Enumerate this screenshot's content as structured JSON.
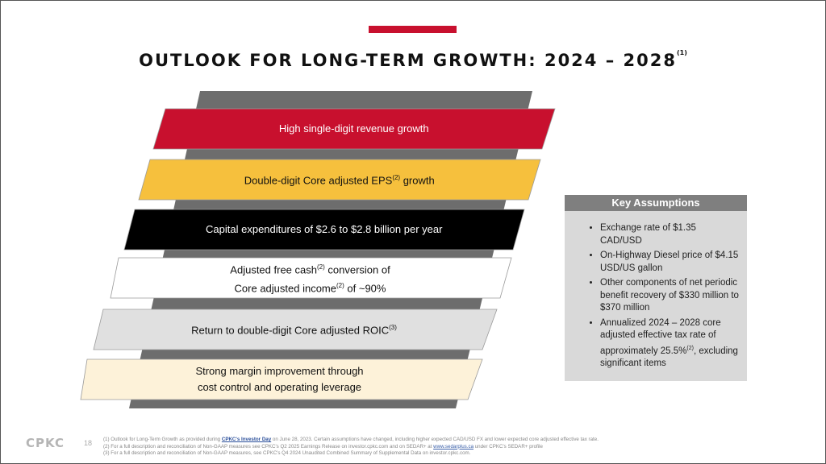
{
  "title": {
    "text": "OUTLOOK FOR LONG-TERM GROWTH: 2024 – 2028",
    "sup": "(1)"
  },
  "bands": [
    {
      "lines": [
        [
          {
            "t": "High single-digit revenue growth"
          }
        ]
      ],
      "fill": "#c8102e",
      "color": "#ffffff"
    },
    {
      "lines": [
        [
          {
            "t": "Double-digit Core adjusted EPS"
          },
          {
            "s": "(2)"
          },
          {
            "t": " growth"
          }
        ]
      ],
      "fill": "#f6c03d",
      "color": "#111111"
    },
    {
      "lines": [
        [
          {
            "t": "Capital expenditures of $2.6 to $2.8 billion per year"
          }
        ]
      ],
      "fill": "#000000",
      "color": "#ffffff"
    },
    {
      "lines": [
        [
          {
            "t": "Adjusted free cash"
          },
          {
            "s": "(2)"
          },
          {
            "t": " conversion of"
          }
        ],
        [
          {
            "t": "Core adjusted income"
          },
          {
            "s": "(2)"
          },
          {
            "t": " of ~90%"
          }
        ]
      ],
      "fill": "#ffffff",
      "color": "#111111"
    },
    {
      "lines": [
        [
          {
            "t": "Return to double-digit Core adjusted ROIC"
          },
          {
            "s": "(3)"
          }
        ]
      ],
      "fill": "#e0e0e0",
      "color": "#111111"
    },
    {
      "lines": [
        [
          {
            "t": "Strong margin improvement through"
          }
        ],
        [
          {
            "t": "cost control and operating leverage"
          }
        ]
      ],
      "fill": "#fdf2d9",
      "color": "#111111"
    }
  ],
  "key_assumptions": {
    "heading": "Key Assumptions",
    "items": [
      {
        "t": "Exchange rate of $1.35 CAD/USD"
      },
      {
        "t": "On-Highway Diesel price of $4.15 USD/US gallon"
      },
      {
        "t": "Other components of net periodic benefit recovery of $330 million to $370 million"
      },
      {
        "t": "Annualized 2024 – 2028 core adjusted effective tax rate of approximately 25.5%",
        "s": "(2)",
        "t2": ", excluding significant items"
      }
    ]
  },
  "footer": {
    "logo": "CPKC",
    "page": "18",
    "notes": [
      {
        "a": "(1) Outlook for Long-Term Growth as provided during ",
        "link": "CPKC's Investor Day",
        "b": " on June 28, 2023. Certain assumptions have changed, including higher expected CAD/USD FX and lower expected core adjusted effective tax rate."
      },
      {
        "a": "(2) For a full description and reconciliation of Non-GAAP measures see CPKC's Q2 2025 Earnings Release on investor.cpkc.com and on SEDAR+ at ",
        "link": "www.sedarplus.ca",
        "b": " under CPKC's SEDAR+ profile"
      },
      {
        "a": "(3) For a full description and reconciliation of Non-GAAP measures, see CPKC's Q4 2024 Unaudited Combined Summary of Supplemental Data on investor.cpkc.com.",
        "link": "",
        "b": ""
      }
    ]
  },
  "colors": {
    "accent": "#c8102e",
    "backdrop": "#6d6d6d",
    "header_gray": "#7f7f7f"
  }
}
